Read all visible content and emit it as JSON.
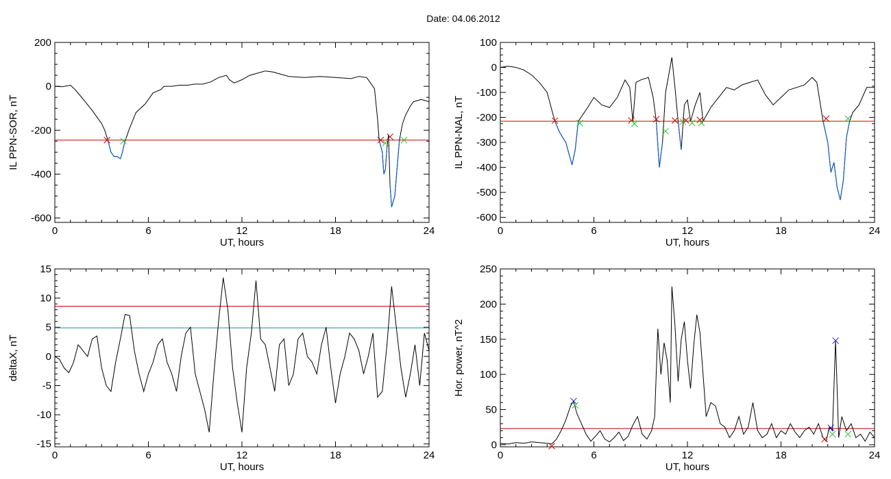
{
  "figure": {
    "title": "Date:  04.06.2012"
  },
  "chart_data": [
    {
      "id": "ppn-sor",
      "type": "line",
      "xlabel": "UT, hours",
      "ylabel": "IL PPN-SOR, nT",
      "xlim": [
        0,
        24
      ],
      "ylim": [
        -620,
        200
      ],
      "xticks": [
        0,
        6,
        12,
        18,
        24
      ],
      "yticks": [
        -600,
        -400,
        -200,
        0,
        200
      ],
      "threshold": {
        "value": -245,
        "color": "#d00000"
      },
      "series": [
        {
          "x": [
            0,
            0.5,
            1,
            1.3,
            1.6,
            2,
            2.4,
            2.8,
            3.0,
            3.2,
            3.4,
            3.6,
            3.8,
            4.0,
            4.2,
            4.3,
            4.5,
            4.8,
            5.2,
            5.8,
            6.3,
            6.8,
            7.0,
            7.5,
            8,
            8.5,
            9,
            9.5,
            10,
            10.5,
            11,
            11.2,
            11.5,
            12,
            12.5,
            13,
            13.5,
            14,
            14.5,
            15,
            16,
            17,
            18,
            19,
            19.5,
            20,
            20.5,
            20.7,
            20.8,
            21.0,
            21.1,
            21.2,
            21.3,
            21.4,
            21.5,
            21.6,
            21.8,
            22.0,
            22.1,
            22.3,
            22.5,
            22.8,
            23,
            23.5,
            24
          ],
          "y": [
            0,
            -2,
            5,
            -15,
            -40,
            -75,
            -110,
            -150,
            -170,
            -200,
            -245,
            -300,
            -320,
            -320,
            -330,
            -310,
            -250,
            -190,
            -120,
            -80,
            -30,
            -15,
            0,
            0,
            5,
            5,
            10,
            10,
            20,
            40,
            50,
            30,
            15,
            30,
            50,
            60,
            70,
            65,
            55,
            45,
            40,
            45,
            40,
            35,
            45,
            40,
            -10,
            -150,
            -245,
            -300,
            -400,
            -380,
            -280,
            -220,
            -450,
            -550,
            -500,
            -330,
            -245,
            -170,
            -130,
            -90,
            -70,
            -60,
            -70
          ],
          "color": "#000000"
        }
      ],
      "markers": [
        {
          "x": 3.35,
          "y": -245,
          "color": "#d00000"
        },
        {
          "x": 4.4,
          "y": -250,
          "color": "#2cc02c"
        },
        {
          "x": 20.9,
          "y": -245,
          "color": "#d00000"
        },
        {
          "x": 21.2,
          "y": -258,
          "color": "#2cc02c"
        },
        {
          "x": 21.5,
          "y": -230,
          "color": "#d00000"
        },
        {
          "x": 22.4,
          "y": -245,
          "color": "#2cc02c"
        }
      ]
    },
    {
      "id": "ppn-nal",
      "type": "line",
      "xlabel": "UT, hours",
      "ylabel": "IL PPN-NAL, nT",
      "xlim": [
        0,
        24
      ],
      "ylim": [
        -620,
        100
      ],
      "xticks": [
        0,
        6,
        12,
        18,
        24
      ],
      "yticks": [
        -600,
        -500,
        -400,
        -300,
        -200,
        -100,
        0,
        100
      ],
      "threshold": {
        "value": -215,
        "color": "#d00000"
      },
      "series": [
        {
          "x": [
            0,
            0.5,
            1,
            1.5,
            2,
            2.5,
            3,
            3.3,
            3.5,
            3.8,
            4.2,
            4.6,
            4.8,
            5.0,
            5.5,
            6,
            6.5,
            7,
            7.5,
            8,
            8.3,
            8.5,
            8.7,
            9,
            9.5,
            9.8,
            10,
            10.2,
            10.4,
            10.6,
            10.8,
            11.0,
            11.2,
            11.4,
            11.6,
            11.8,
            12,
            12.2,
            12.5,
            12.8,
            13.0,
            13.5,
            14,
            14.5,
            15,
            15.5,
            16,
            16.5,
            17,
            17.5,
            18,
            18.5,
            19,
            19.5,
            20,
            20.3,
            20.7,
            21,
            21.2,
            21.4,
            21.6,
            21.8,
            22.0,
            22.2,
            22.4,
            22.6,
            23,
            23.5,
            24
          ],
          "y": [
            0,
            5,
            0,
            -10,
            -30,
            -60,
            -100,
            -170,
            -215,
            -260,
            -300,
            -390,
            -330,
            -215,
            -170,
            -120,
            -150,
            -160,
            -120,
            -50,
            -80,
            -215,
            -60,
            -50,
            -40,
            -120,
            -215,
            -400,
            -300,
            -100,
            -30,
            40,
            -80,
            -215,
            -330,
            -150,
            -130,
            -215,
            -150,
            -100,
            -215,
            -160,
            -120,
            -80,
            -90,
            -70,
            -60,
            -50,
            -110,
            -150,
            -120,
            -90,
            -80,
            -70,
            -40,
            -60,
            -215,
            -300,
            -420,
            -380,
            -480,
            -530,
            -450,
            -280,
            -215,
            -180,
            -150,
            -80,
            -80
          ],
          "color": "#000000"
        }
      ],
      "markers": [
        {
          "x": 3.5,
          "y": -213,
          "color": "#d00000"
        },
        {
          "x": 5.1,
          "y": -223,
          "color": "#2cc02c"
        },
        {
          "x": 8.4,
          "y": -212,
          "color": "#d00000"
        },
        {
          "x": 8.6,
          "y": -225,
          "color": "#2cc02c"
        },
        {
          "x": 10.0,
          "y": -207,
          "color": "#d00000"
        },
        {
          "x": 10.6,
          "y": -255,
          "color": "#2cc02c"
        },
        {
          "x": 11.2,
          "y": -212,
          "color": "#d00000"
        },
        {
          "x": 11.7,
          "y": -217,
          "color": "#2cc02c"
        },
        {
          "x": 11.9,
          "y": -212,
          "color": "#d00000"
        },
        {
          "x": 12.3,
          "y": -222,
          "color": "#2cc02c"
        },
        {
          "x": 12.8,
          "y": -210,
          "color": "#d00000"
        },
        {
          "x": 12.9,
          "y": -222,
          "color": "#2cc02c"
        },
        {
          "x": 20.9,
          "y": -205,
          "color": "#d00000"
        },
        {
          "x": 22.3,
          "y": -205,
          "color": "#2cc02c"
        }
      ]
    },
    {
      "id": "deltax",
      "type": "line",
      "xlabel": "UT, hours",
      "ylabel": "deltaX, nT",
      "xlim": [
        0,
        24
      ],
      "ylim": [
        -15.5,
        15
      ],
      "xticks": [
        0,
        6,
        12,
        18,
        24
      ],
      "yticks": [
        -15,
        -10,
        -5,
        0,
        5,
        10,
        15
      ],
      "thresholds": [
        {
          "value": 8.6,
          "color": "#d00000"
        },
        {
          "value": 4.9,
          "color": "#1a8f8f"
        }
      ],
      "series": [
        {
          "x": [
            0,
            0.3,
            0.6,
            0.9,
            1.2,
            1.5,
            1.8,
            2.1,
            2.4,
            2.7,
            3.0,
            3.3,
            3.6,
            3.9,
            4.2,
            4.5,
            4.8,
            5.1,
            5.4,
            5.7,
            6.0,
            6.3,
            6.6,
            6.9,
            7.2,
            7.5,
            7.8,
            8.1,
            8.4,
            8.7,
            9.0,
            9.3,
            9.6,
            9.9,
            10.2,
            10.5,
            10.8,
            11.1,
            11.4,
            11.7,
            12.0,
            12.3,
            12.6,
            12.9,
            13.2,
            13.5,
            13.8,
            14.1,
            14.4,
            14.7,
            15.0,
            15.3,
            15.6,
            15.9,
            16.2,
            16.5,
            16.8,
            17.1,
            17.4,
            17.7,
            18.0,
            18.3,
            18.6,
            18.9,
            19.2,
            19.5,
            19.8,
            20.1,
            20.4,
            20.7,
            21.0,
            21.3,
            21.6,
            21.9,
            22.2,
            22.5,
            22.8,
            23.1,
            23.4,
            23.7,
            24.0
          ],
          "y": [
            0,
            -0.5,
            -2,
            -2.8,
            -1,
            2,
            1,
            0,
            3,
            3.5,
            -2,
            -5,
            -6,
            -1,
            3,
            7.2,
            7,
            1,
            -3,
            -6,
            -3,
            -1,
            2,
            3,
            -1,
            -3,
            -6,
            0,
            4,
            5,
            -3,
            -6,
            -9,
            -13,
            -3,
            6,
            13.5,
            8,
            -2,
            -8,
            -13,
            -2,
            4,
            13,
            3,
            2,
            -2,
            -6,
            2,
            3,
            -5,
            -3,
            3,
            4,
            0,
            -1,
            -3,
            2,
            5,
            -2,
            -8,
            -3,
            0,
            4,
            3,
            1,
            -3,
            0,
            4,
            -7,
            -6,
            2,
            12,
            5,
            -2,
            -7,
            -3,
            2,
            -5,
            4,
            1
          ],
          "color": "#000000"
        }
      ]
    },
    {
      "id": "hor-power",
      "type": "line",
      "xlabel": "UT, hours",
      "ylabel": "Hor. power, nT^2",
      "xlim": [
        0,
        24
      ],
      "ylim": [
        -3,
        250
      ],
      "xticks": [
        0,
        6,
        12,
        18,
        24
      ],
      "yticks": [
        0,
        50,
        100,
        150,
        200,
        250
      ],
      "threshold": {
        "value": 23,
        "color": "#d00000"
      },
      "series": [
        {
          "x": [
            0,
            0.5,
            1,
            1.5,
            2,
            2.5,
            3,
            3.3,
            3.6,
            3.9,
            4.2,
            4.5,
            4.7,
            4.9,
            5.2,
            5.5,
            5.8,
            6.1,
            6.4,
            6.7,
            7,
            7.3,
            7.6,
            7.9,
            8.2,
            8.5,
            8.8,
            9.1,
            9.4,
            9.7,
            9.9,
            10.1,
            10.3,
            10.5,
            10.7,
            10.9,
            11.0,
            11.2,
            11.4,
            11.6,
            11.8,
            12.0,
            12.2,
            12.4,
            12.6,
            12.8,
            13.0,
            13.2,
            13.5,
            13.8,
            14.1,
            14.4,
            14.7,
            15.0,
            15.3,
            15.6,
            15.9,
            16.2,
            16.5,
            16.8,
            17.1,
            17.4,
            17.7,
            18.0,
            18.3,
            18.6,
            18.9,
            19.2,
            19.5,
            19.8,
            20.1,
            20.4,
            20.7,
            20.9,
            21.1,
            21.3,
            21.5,
            21.7,
            21.9,
            22.2,
            22.5,
            22.8,
            23.1,
            23.4,
            23.7,
            24.0
          ],
          "y": [
            2,
            1,
            3,
            2,
            4,
            3,
            2,
            1,
            8,
            20,
            35,
            55,
            62,
            45,
            30,
            15,
            5,
            12,
            20,
            8,
            4,
            10,
            18,
            6,
            12,
            28,
            40,
            15,
            8,
            20,
            40,
            165,
            100,
            145,
            120,
            60,
            225,
            170,
            90,
            150,
            175,
            120,
            80,
            140,
            185,
            160,
            100,
            40,
            60,
            55,
            30,
            25,
            10,
            20,
            40,
            15,
            25,
            60,
            20,
            10,
            15,
            30,
            10,
            20,
            15,
            30,
            18,
            10,
            20,
            25,
            15,
            30,
            10,
            5,
            25,
            20,
            148,
            10,
            40,
            20,
            30,
            10,
            15,
            5,
            18,
            10
          ],
          "color": "#000000"
        }
      ],
      "markers": [
        {
          "x": 3.3,
          "y": -2,
          "color": "#d00000"
        },
        {
          "x": 4.7,
          "y": 62,
          "color": "#2020d0"
        },
        {
          "x": 4.8,
          "y": 56,
          "color": "#2cc02c"
        },
        {
          "x": 20.8,
          "y": 8,
          "color": "#d00000"
        },
        {
          "x": 21.2,
          "y": 24,
          "color": "#2020d0"
        },
        {
          "x": 21.3,
          "y": 15,
          "color": "#2cc02c"
        },
        {
          "x": 21.5,
          "y": 148,
          "color": "#2020d0"
        },
        {
          "x": 22.3,
          "y": 15,
          "color": "#2cc02c"
        }
      ]
    }
  ]
}
